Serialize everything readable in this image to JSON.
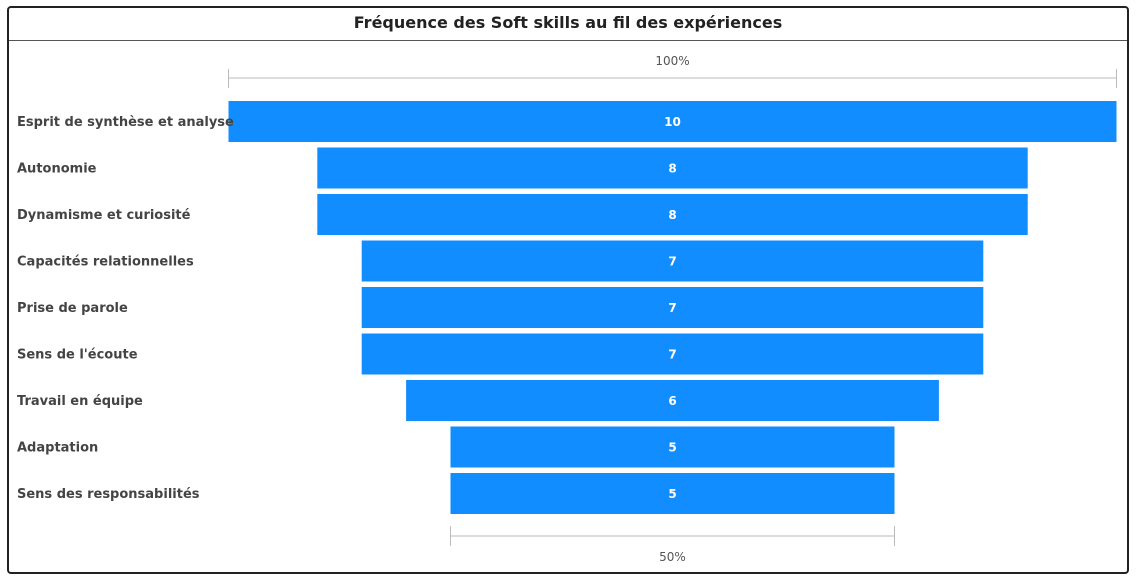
{
  "chart_data": {
    "type": "bar",
    "subtype": "funnel",
    "title": "Fréquence des Soft skills au fil des expériences",
    "categories": [
      "Esprit de synthèse et analyse",
      "Autonomie",
      "Dynamisme et curiosité",
      "Capacités relationnelles",
      "Prise de parole",
      "Sens de l'écoute",
      "Travail en équipe",
      "Adaptation",
      "Sens des responsabilités"
    ],
    "values": [
      10,
      8,
      8,
      7,
      7,
      7,
      6,
      5,
      5
    ],
    "max_value": 10,
    "top_reference_label": "100%",
    "bottom_reference_label": "50%",
    "bar_color": "#118DFF",
    "xlabel": "",
    "ylabel": ""
  }
}
